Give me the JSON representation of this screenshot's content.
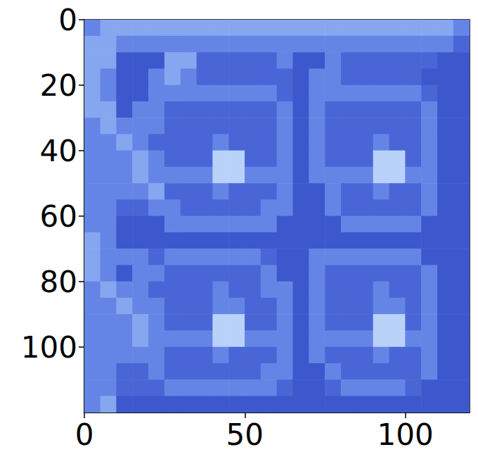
{
  "chart_data": {
    "type": "heatmap",
    "x": [
      2.5,
      7.5,
      12.5,
      17.5,
      22.5,
      27.5,
      32.5,
      37.5,
      42.5,
      47.5,
      52.5,
      57.5,
      62.5,
      67.5,
      72.5,
      77.5,
      82.5,
      87.5,
      92.5,
      97.5,
      102.5,
      107.5,
      112.5,
      117.5
    ],
    "y": [
      2.5,
      7.5,
      12.5,
      17.5,
      22.5,
      27.5,
      32.5,
      37.5,
      42.5,
      47.5,
      52.5,
      57.5,
      62.5,
      67.5,
      72.5,
      77.5,
      82.5,
      87.5,
      92.5,
      97.5,
      102.5,
      107.5,
      112.5,
      117.5
    ],
    "cells": [
      [
        2,
        3,
        3,
        3,
        3,
        3,
        3,
        3,
        3,
        3,
        3,
        3,
        3,
        3,
        3,
        3,
        3,
        3,
        3,
        3,
        3,
        3,
        3,
        2
      ],
      [
        3,
        3,
        2,
        2,
        2,
        2,
        2,
        2,
        2,
        2,
        2,
        2,
        2,
        2,
        2,
        2,
        2,
        2,
        2,
        2,
        2,
        2,
        2,
        1
      ],
      [
        3,
        3,
        0,
        0,
        0,
        3,
        3,
        1,
        1,
        1,
        1,
        1,
        2,
        0,
        0,
        2,
        1,
        1,
        1,
        1,
        1,
        1,
        0,
        0
      ],
      [
        3,
        2,
        0,
        0,
        2,
        3,
        2,
        1,
        1,
        1,
        1,
        1,
        1,
        0,
        2,
        2,
        1,
        1,
        1,
        1,
        1,
        0,
        0,
        0
      ],
      [
        3,
        2,
        0,
        0,
        2,
        2,
        2,
        2,
        2,
        2,
        2,
        2,
        1,
        0,
        2,
        2,
        2,
        2,
        2,
        2,
        2,
        1,
        0,
        0
      ],
      [
        3,
        3,
        0,
        2,
        2,
        1,
        1,
        1,
        1,
        1,
        1,
        1,
        2,
        0,
        2,
        1,
        1,
        1,
        1,
        1,
        1,
        2,
        0,
        0
      ],
      [
        2,
        3,
        2,
        2,
        2,
        1,
        1,
        1,
        1,
        1,
        1,
        1,
        2,
        0,
        2,
        1,
        1,
        1,
        1,
        1,
        1,
        2,
        0,
        0
      ],
      [
        2,
        2,
        3,
        2,
        1,
        1,
        1,
        1,
        2,
        1,
        1,
        1,
        2,
        0,
        2,
        1,
        1,
        1,
        2,
        1,
        1,
        2,
        0,
        0
      ],
      [
        2,
        2,
        2,
        3,
        2,
        1,
        1,
        1,
        4,
        4,
        1,
        1,
        2,
        0,
        2,
        1,
        1,
        1,
        4,
        4,
        1,
        2,
        0,
        0
      ],
      [
        2,
        2,
        2,
        3,
        2,
        2,
        2,
        2,
        4,
        4,
        2,
        2,
        2,
        0,
        2,
        2,
        2,
        2,
        4,
        4,
        2,
        2,
        0,
        0
      ],
      [
        2,
        2,
        2,
        2,
        3,
        1,
        1,
        1,
        2,
        1,
        1,
        1,
        2,
        0,
        0,
        2,
        1,
        1,
        2,
        1,
        1,
        2,
        0,
        0
      ],
      [
        2,
        2,
        1,
        1,
        2,
        2,
        1,
        1,
        1,
        1,
        1,
        2,
        2,
        0,
        0,
        2,
        1,
        1,
        1,
        1,
        1,
        2,
        0,
        0
      ],
      [
        2,
        2,
        0,
        0,
        0,
        2,
        2,
        2,
        2,
        2,
        2,
        2,
        0,
        0,
        0,
        0,
        2,
        2,
        2,
        2,
        2,
        0,
        0,
        0
      ],
      [
        3,
        2,
        0,
        0,
        0,
        0,
        0,
        0,
        0,
        0,
        0,
        0,
        0,
        0,
        0,
        0,
        0,
        0,
        0,
        0,
        0,
        0,
        0,
        0
      ],
      [
        3,
        2,
        2,
        2,
        1,
        2,
        2,
        2,
        2,
        2,
        2,
        1,
        0,
        0,
        2,
        2,
        2,
        2,
        2,
        2,
        2,
        0,
        0,
        0
      ],
      [
        3,
        2,
        0,
        2,
        2,
        1,
        1,
        1,
        1,
        1,
        1,
        2,
        0,
        0,
        2,
        1,
        1,
        1,
        1,
        1,
        1,
        2,
        0,
        0
      ],
      [
        2,
        3,
        2,
        2,
        1,
        1,
        1,
        1,
        2,
        1,
        1,
        2,
        2,
        0,
        2,
        1,
        1,
        1,
        2,
        1,
        1,
        2,
        0,
        0
      ],
      [
        2,
        2,
        3,
        2,
        2,
        1,
        1,
        1,
        2,
        2,
        1,
        1,
        2,
        0,
        2,
        1,
        1,
        1,
        2,
        2,
        1,
        2,
        0,
        0
      ],
      [
        2,
        2,
        2,
        3,
        2,
        1,
        1,
        1,
        4,
        4,
        1,
        1,
        2,
        0,
        2,
        1,
        1,
        1,
        4,
        4,
        1,
        2,
        0,
        0
      ],
      [
        2,
        2,
        2,
        3,
        2,
        2,
        2,
        2,
        4,
        4,
        2,
        2,
        2,
        0,
        2,
        2,
        2,
        2,
        4,
        4,
        2,
        2,
        0,
        0
      ],
      [
        2,
        2,
        2,
        2,
        2,
        1,
        1,
        1,
        2,
        1,
        1,
        1,
        2,
        0,
        2,
        1,
        1,
        1,
        2,
        1,
        1,
        2,
        0,
        0
      ],
      [
        2,
        2,
        1,
        1,
        2,
        1,
        1,
        1,
        1,
        1,
        1,
        2,
        2,
        0,
        0,
        2,
        1,
        1,
        1,
        1,
        1,
        2,
        0,
        0
      ],
      [
        2,
        2,
        1,
        1,
        1,
        2,
        2,
        2,
        2,
        2,
        2,
        2,
        1,
        0,
        0,
        1,
        2,
        2,
        2,
        2,
        1,
        0,
        0,
        0
      ],
      [
        2,
        3,
        0,
        0,
        0,
        0,
        0,
        0,
        0,
        0,
        0,
        0,
        0,
        0,
        0,
        0,
        0,
        0,
        0,
        0,
        0,
        0,
        0,
        0
      ]
    ],
    "xlim": [
      0,
      120
    ],
    "ylim": [
      120,
      0
    ],
    "xticks": [
      0,
      50,
      100
    ],
    "yticks": [
      0,
      20,
      40,
      60,
      80,
      100
    ],
    "grid": false
  }
}
